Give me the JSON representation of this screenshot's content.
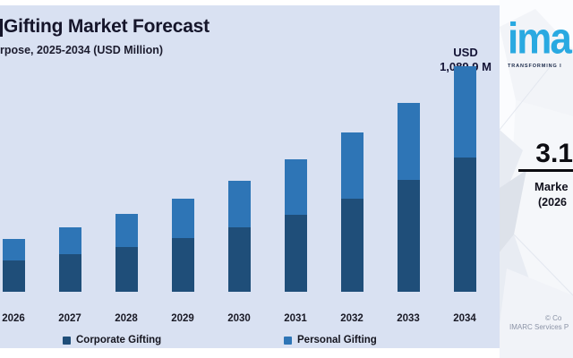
{
  "header": {
    "title": "Gifting Market Forecast",
    "subtitle": "rpose, 2025-2034 (USD Million)"
  },
  "callout": {
    "line1": "USD",
    "line2": "1,089.9 M"
  },
  "legend": [
    {
      "label": "Corporate Gifting",
      "color": "#1F4E79"
    },
    {
      "label": "Personal Gifting",
      "color": "#2E75B6"
    }
  ],
  "brand_panel": {
    "logo_text": "ima",
    "logo_color": "#29A9E1",
    "tagline": "TRANSFORMING I",
    "cagr_value": "3.1",
    "cagr_label": "Marke",
    "cagr_period": "(2026",
    "copyright_line1": "© Co",
    "copyright_line2": "IMARC Services P"
  },
  "colors": {
    "chart_background": "#D9E1F2",
    "corporate_bar": "#1F4E79",
    "personal_bar": "#2E75B6",
    "page_background": "#FFFFFF"
  },
  "chart_data": {
    "type": "bar",
    "stacked": true,
    "title": "Gifting Market Forecast",
    "subtitle_fragment": "rpose, 2025-2034 (USD Million)",
    "unit": "USD Million",
    "categories": [
      "2026",
      "2027",
      "2028",
      "2029",
      "2030",
      "2031",
      "2032",
      "2033",
      "2034"
    ],
    "series": [
      {
        "name": "Corporate Gifting",
        "color": "#1F4E79",
        "values": [
          151,
          182,
          216,
          260,
          311,
          372,
          450,
          541,
          649
        ]
      },
      {
        "name": "Personal Gifting",
        "color": "#2E75B6",
        "values": [
          104,
          129,
          160,
          190,
          225,
          268,
          320,
          372,
          440.9
        ]
      }
    ],
    "totals": [
      255,
      311,
      376,
      450,
      536,
      640,
      770,
      913,
      1089.9
    ],
    "labeled_point": {
      "category": "2034",
      "label": "USD 1,089.9 M"
    },
    "ylim": [
      0,
      1090
    ],
    "grid": false,
    "legend_position": "bottom",
    "note": "Only the 2034 total carries an on-chart data label; other values estimated from bar heights."
  }
}
